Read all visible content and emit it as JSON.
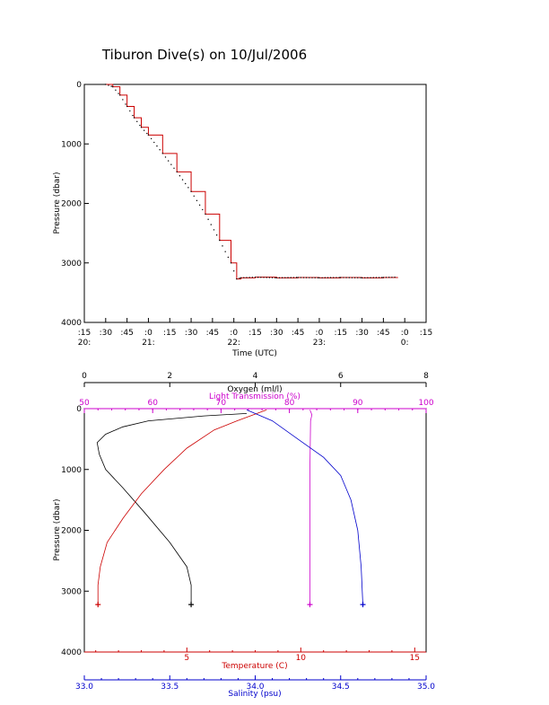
{
  "title": "Tiburon Dive(s) on 10/Jul/2006",
  "colors": {
    "axis": "#000000",
    "temperature": "#cc0000",
    "oxygen": "#000000",
    "light": "#cc00cc",
    "salinity": "#0000cc",
    "pressure_time_line": "#cc0000",
    "pressure_time_dots": "#000000"
  },
  "chart_data": [
    {
      "type": "line",
      "xlabel": "Time (UTC)",
      "ylabel": "Pressure (dbar)",
      "ylim": [
        4000,
        0
      ],
      "yticks": [
        0,
        1000,
        2000,
        3000,
        4000
      ],
      "xlim_minutes_since_2000": [
        15,
        255
      ],
      "xtick_labels": [
        {
          "top": ":15",
          "bottom": "20:"
        },
        {
          "top": ":30",
          "bottom": ""
        },
        {
          "top": ":45",
          "bottom": ""
        },
        {
          "top": ":0",
          "bottom": "21:"
        },
        {
          "top": ":15",
          "bottom": ""
        },
        {
          "top": ":30",
          "bottom": ""
        },
        {
          "top": ":45",
          "bottom": ""
        },
        {
          "top": ":0",
          "bottom": "22:"
        },
        {
          "top": ":15",
          "bottom": ""
        },
        {
          "top": ":30",
          "bottom": ""
        },
        {
          "top": ":45",
          "bottom": ""
        },
        {
          "top": ":0",
          "bottom": "23:"
        },
        {
          "top": ":15",
          "bottom": ""
        },
        {
          "top": ":30",
          "bottom": ""
        },
        {
          "top": ":45",
          "bottom": ""
        },
        {
          "top": ":0",
          "bottom": "0:"
        },
        {
          "top": ":15",
          "bottom": ""
        }
      ],
      "x": [
        "20:30",
        "20:35",
        "20:40",
        "20:45",
        "20:50",
        "20:55",
        "21:00",
        "21:10",
        "21:20",
        "21:30",
        "21:40",
        "21:50",
        "21:58",
        "22:02",
        "22:05",
        "22:15",
        "22:30",
        "22:45",
        "23:00",
        "23:15",
        "23:30",
        "23:45",
        "23:55"
      ],
      "y": [
        0,
        40,
        180,
        370,
        560,
        720,
        850,
        1160,
        1470,
        1800,
        2180,
        2620,
        3000,
        3270,
        3250,
        3240,
        3250,
        3245,
        3250,
        3245,
        3250,
        3245,
        3240
      ]
    },
    {
      "type": "line",
      "ylabel": "Pressure (dbar)",
      "ylim": [
        4000,
        0
      ],
      "yticks": [
        0,
        1000,
        2000,
        3000,
        4000
      ],
      "axes": {
        "oxygen": {
          "label": "Oxygen (ml/l)",
          "range": [
            0,
            8
          ],
          "ticks": [
            0,
            2,
            4,
            6,
            8
          ]
        },
        "light": {
          "label": "Light Transmission (%)",
          "range": [
            50,
            100
          ],
          "ticks": [
            50,
            60,
            70,
            80,
            90,
            100
          ]
        },
        "temperature": {
          "label": "Temperature (C)",
          "range": [
            0.5,
            15.5
          ],
          "ticks": [
            5,
            10,
            15
          ]
        },
        "salinity": {
          "label": "Salinity (psu)",
          "range": [
            33.0,
            35.0
          ],
          "ticks": [
            "33.0",
            "33.5",
            "34.0",
            "34.5",
            "35.0"
          ]
        }
      },
      "series": [
        {
          "axis": "oxygen",
          "color": "#000000",
          "points": [
            [
              3.8,
              80
            ],
            [
              2.8,
              120
            ],
            [
              1.5,
              200
            ],
            [
              0.9,
              300
            ],
            [
              0.5,
              420
            ],
            [
              0.3,
              560
            ],
            [
              0.35,
              750
            ],
            [
              0.5,
              1000
            ],
            [
              0.9,
              1300
            ],
            [
              1.4,
              1700
            ],
            [
              2.0,
              2200
            ],
            [
              2.4,
              2600
            ],
            [
              2.5,
              2900
            ],
            [
              2.5,
              3220
            ]
          ]
        },
        {
          "axis": "temperature",
          "color": "#cc0000",
          "points": [
            [
              8.5,
              20
            ],
            [
              7.2,
              200
            ],
            [
              6.2,
              350
            ],
            [
              5.0,
              650
            ],
            [
              4.0,
              1000
            ],
            [
              3.0,
              1400
            ],
            [
              2.2,
              1800
            ],
            [
              1.5,
              2200
            ],
            [
              1.2,
              2600
            ],
            [
              1.1,
              2900
            ],
            [
              1.1,
              3220
            ]
          ]
        },
        {
          "axis": "light",
          "color": "#cc00cc",
          "points": [
            [
              83.0,
              20
            ],
            [
              83.3,
              100
            ],
            [
              83.1,
              200
            ],
            [
              83.0,
              1000
            ],
            [
              83.0,
              2000
            ],
            [
              83.0,
              3000
            ],
            [
              83.0,
              3220
            ]
          ]
        },
        {
          "axis": "salinity",
          "color": "#0000cc",
          "points": [
            [
              33.95,
              20
            ],
            [
              34.1,
              200
            ],
            [
              34.25,
              500
            ],
            [
              34.4,
              800
            ],
            [
              34.5,
              1100
            ],
            [
              34.56,
              1500
            ],
            [
              34.6,
              2000
            ],
            [
              34.62,
              2600
            ],
            [
              34.63,
              3220
            ]
          ]
        }
      ]
    }
  ]
}
